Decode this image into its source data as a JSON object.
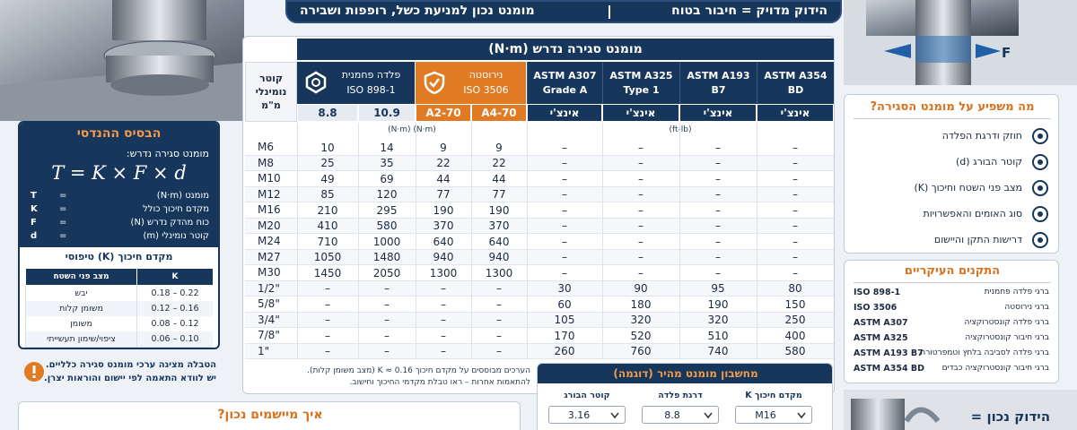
{
  "banner": {
    "title": "הידוק מדויק = חיבור בטוח",
    "subtitle": "מומנט נכון למניעת כשל, רופפות ושבירה"
  },
  "photo_label": "F",
  "table": {
    "title": "מומנט סגירה נדרש (N·m)",
    "size_header": [
      "קוטר",
      "נומינלי",
      "מ\"מ"
    ],
    "groups": [
      {
        "label": "פלדה פחמנית",
        "sublabel": "ISO 898-1"
      },
      {
        "label": "נירוסטה",
        "sublabel": "ISO 3506"
      }
    ],
    "astm_headers": [
      [
        "ASTM A307",
        "Grade A"
      ],
      [
        "ASTM A325",
        "Type 1"
      ],
      [
        "ASTM A193",
        "B7"
      ],
      [
        "ASTM A354",
        "BD"
      ]
    ],
    "grades": [
      "8.8",
      "10.9",
      "A2-70",
      "A4-70",
      "אינצ'י",
      "אינצ'י",
      "אינצ'י",
      "אינצ'י"
    ],
    "units": [
      "(N·m) (N·m)",
      "(ft-lb)"
    ],
    "rows": [
      [
        "M6",
        10,
        14,
        9,
        9,
        "–",
        "–",
        "–",
        "–"
      ],
      [
        "M8",
        25,
        35,
        22,
        22,
        "–",
        "–",
        "–",
        "–"
      ],
      [
        "M10",
        49,
        69,
        44,
        44,
        "–",
        "–",
        "–",
        "–"
      ],
      [
        "M12",
        85,
        120,
        77,
        77,
        "–",
        "–",
        "–",
        "–"
      ],
      [
        "M16",
        210,
        295,
        190,
        190,
        "–",
        "–",
        "–",
        "–"
      ],
      [
        "M20",
        410,
        580,
        370,
        370,
        "–",
        "–",
        "–",
        "–"
      ],
      [
        "M24",
        710,
        1000,
        640,
        640,
        "–",
        "–",
        "–",
        "–"
      ],
      [
        "M27",
        1050,
        1480,
        940,
        940,
        "–",
        "–",
        "–",
        "–"
      ],
      [
        "M30",
        1450,
        2050,
        1300,
        1300,
        "–",
        "–",
        "–",
        "–"
      ],
      [
        "1/2\"",
        "–",
        "–",
        "–",
        "–",
        30,
        90,
        95,
        80
      ],
      [
        "5/8\"",
        "–",
        "–",
        "–",
        "–",
        60,
        180,
        190,
        150
      ],
      [
        "3/4\"",
        "–",
        "–",
        "–",
        "–",
        105,
        320,
        320,
        250
      ],
      [
        "7/8\"",
        "–",
        "–",
        "–",
        "–",
        170,
        520,
        510,
        400
      ],
      [
        "1\"",
        "–",
        "–",
        "–",
        "–",
        260,
        760,
        740,
        580
      ]
    ],
    "note": [
      "הערכים מבוססים על מקדם חיכוך K ≈ 0.16 (מצב משומן קלות).",
      "להתאמות אחרות – ראו טבלת מקדמי החיכוך וחישוב."
    ]
  },
  "basis": {
    "title": "הבסיס ההנדסי",
    "formula_label": "מומנט סגירה נדרש:",
    "formula": "T = K × F × d",
    "legend": [
      {
        "symbol": "T",
        "sign": "=",
        "text": "מומנט (N·m)"
      },
      {
        "symbol": "K",
        "sign": "=",
        "text": "מקדם חיכוך כולל"
      },
      {
        "symbol": "F",
        "sign": "=",
        "text": "כוח מהדק נדרש (N)"
      },
      {
        "symbol": "d",
        "sign": "=",
        "text": "קוטר נומינלי (m)"
      }
    ],
    "k_title": "מקדם חיכוך (K) טיפוסי",
    "k_headers": [
      "מצב פני השטח",
      "K"
    ],
    "k_rows": [
      [
        "יבש",
        "0.18 – 0.22"
      ],
      [
        "משומן קלות",
        "0.12 – 0.16"
      ],
      [
        "משומן",
        "0.08 – 0.12"
      ],
      [
        "ציפוי/שימון תעשייתי",
        "0.06 – 0.10"
      ]
    ]
  },
  "warning": [
    "הטבלה מציגה ערכי מומנט סגירה כלליים.",
    "יש לוודא התאמה לפי יישום והוראות יצרן."
  ],
  "howto": {
    "title": "איך מיישמים נכון?"
  },
  "calculator": {
    "title": "מחשבון מומנט מהיר (דוגמה)",
    "fields": [
      {
        "label": "קוטר הבורג",
        "value": "3.16"
      },
      {
        "label": "דרגת פלדה",
        "value": "8.8"
      },
      {
        "label": "מקדם חיכוך K",
        "value": "M16"
      }
    ]
  },
  "factors": {
    "title": "מה משפיע על מומנט הסגירה?",
    "items": [
      "חוזק ודרגת הפלדה",
      "קוטר הבורג (d)",
      "מצב פני השטח וחיכוך (K)",
      "סוג האומים והאפשרויות",
      "דרישות התקן והיישום"
    ]
  },
  "standards": {
    "title": "התקנים העיקריים",
    "items": [
      {
        "code": "ISO 898-1",
        "desc": "ברגי פלדה פחמנית"
      },
      {
        "code": "ISO 3506",
        "desc": "ברגי נירוסטה"
      },
      {
        "code": "ASTM A307",
        "desc": "ברגי פלדה קונסטרוקציה"
      },
      {
        "code": "ASTM A325",
        "desc": "ברגי חיבור קונסטרוקציה"
      },
      {
        "code": "ASTM A193 B7",
        "desc": "ברגי פלדה לסביבה בלחץ וטמפרטורה"
      },
      {
        "code": "ASTM A354 BD",
        "desc": "ברגי חיבור קונסטרוקציה כבדים"
      }
    ]
  },
  "tagline": "הידוק נכון ="
}
